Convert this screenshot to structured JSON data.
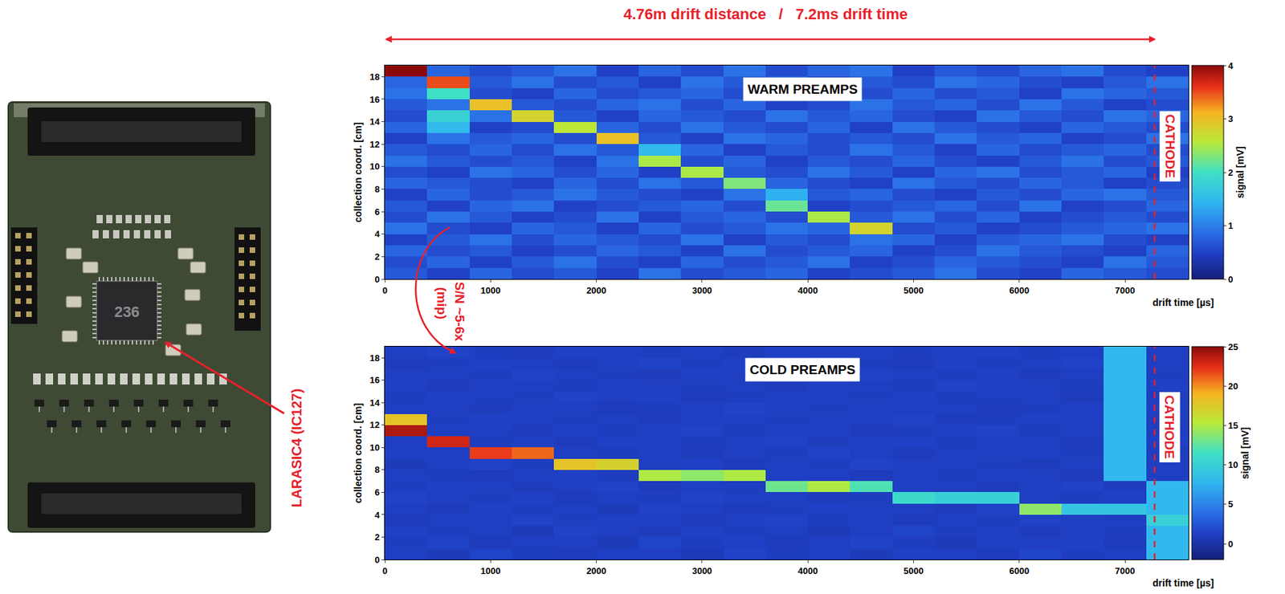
{
  "header": "4.76m drift distance   /   7.2ms drift time",
  "photo": {
    "chip_marking": "236",
    "label": "LARASIC4 (IC127)"
  },
  "comparison_label": [
    "S/N ~5-6x",
    "(mip)"
  ],
  "chart_data": [
    {
      "type": "heatmap",
      "title": "WARM PREAMPS",
      "xlabel": "drift time [µs]",
      "ylabel": "collection coord. [cm]",
      "x": [
        200,
        600,
        1000,
        1400,
        1800,
        2200,
        2600,
        3000,
        3400,
        3800,
        4200,
        4600,
        5000,
        5400,
        5800,
        6200,
        6600,
        7000,
        7400
      ],
      "y": [
        0.5,
        1.5,
        2.5,
        3.5,
        4.5,
        5.5,
        6.5,
        7.5,
        8.5,
        9.5,
        10.5,
        11.5,
        12.5,
        13.5,
        14.5,
        15.5,
        16.5,
        17.5,
        18.5
      ],
      "z": [
        [
          0.7,
          0.5,
          0.8,
          0.6,
          0.7,
          0.5,
          0.9,
          0.6,
          0.7,
          0.8,
          0.5,
          0.6,
          0.7,
          0.9,
          0.6,
          0.5,
          0.8,
          0.7,
          0.6
        ],
        [
          0.6,
          0.8,
          0.5,
          0.7,
          0.9,
          0.6,
          0.5,
          0.8,
          0.6,
          0.7,
          0.9,
          0.5,
          0.6,
          0.8,
          0.7,
          0.6,
          0.5,
          0.9,
          0.7
        ],
        [
          0.8,
          0.6,
          0.7,
          0.5,
          0.6,
          0.8,
          0.7,
          0.5,
          0.9,
          0.6,
          0.7,
          0.8,
          0.5,
          0.6,
          0.9,
          0.7,
          0.6,
          0.5,
          0.8
        ],
        [
          0.5,
          0.7,
          0.9,
          0.6,
          0.8,
          0.7,
          0.6,
          0.9,
          0.5,
          0.7,
          0.6,
          0.9,
          0.8,
          0.5,
          0.7,
          0.8,
          0.9,
          0.6,
          0.5
        ],
        [
          0.9,
          0.6,
          0.5,
          0.8,
          0.7,
          0.5,
          0.8,
          0.6,
          0.7,
          0.9,
          0.8,
          2.8,
          0.6,
          0.7,
          0.5,
          0.6,
          0.7,
          0.8,
          0.9
        ],
        [
          0.6,
          0.9,
          0.7,
          0.5,
          0.6,
          0.9,
          0.5,
          0.7,
          0.8,
          0.6,
          2.5,
          0.7,
          0.9,
          0.6,
          0.8,
          0.5,
          0.6,
          0.7,
          0.6
        ],
        [
          0.7,
          0.5,
          0.8,
          0.9,
          0.5,
          0.6,
          0.7,
          0.8,
          0.6,
          2.2,
          0.5,
          0.6,
          0.7,
          0.8,
          0.6,
          0.9,
          0.5,
          0.6,
          0.8
        ],
        [
          0.5,
          0.8,
          0.6,
          0.7,
          0.9,
          0.7,
          0.6,
          0.5,
          0.9,
          1.4,
          0.7,
          0.8,
          0.6,
          0.5,
          0.7,
          0.6,
          0.8,
          0.9,
          0.7
        ],
        [
          0.8,
          0.7,
          0.6,
          0.5,
          0.8,
          0.6,
          0.9,
          0.7,
          2.3,
          0.8,
          0.6,
          0.5,
          0.9,
          0.7,
          0.6,
          0.8,
          0.7,
          0.5,
          0.6
        ],
        [
          0.6,
          0.5,
          0.9,
          0.8,
          0.6,
          0.8,
          0.5,
          2.5,
          0.7,
          0.6,
          0.9,
          0.7,
          0.5,
          0.8,
          0.9,
          0.6,
          0.7,
          0.8,
          0.5
        ],
        [
          0.9,
          0.7,
          0.6,
          0.7,
          0.5,
          0.9,
          2.5,
          0.6,
          0.8,
          0.5,
          0.7,
          0.6,
          0.8,
          0.6,
          0.5,
          0.7,
          0.9,
          0.6,
          0.7
        ],
        [
          0.7,
          0.6,
          0.8,
          0.6,
          0.9,
          0.7,
          1.5,
          0.8,
          0.5,
          0.7,
          0.6,
          0.9,
          0.7,
          0.5,
          0.8,
          0.6,
          0.7,
          0.8,
          0.6
        ],
        [
          0.5,
          0.9,
          0.7,
          0.8,
          0.6,
          3.0,
          0.7,
          0.5,
          0.9,
          0.8,
          0.6,
          0.7,
          0.6,
          0.9,
          0.7,
          0.8,
          0.5,
          0.6,
          0.9
        ],
        [
          0.8,
          1.5,
          0.5,
          0.6,
          2.6,
          0.8,
          0.6,
          0.9,
          0.7,
          0.6,
          0.8,
          0.5,
          0.9,
          0.7,
          0.6,
          0.5,
          0.8,
          0.7,
          0.6
        ],
        [
          0.6,
          1.8,
          0.9,
          2.8,
          0.7,
          0.5,
          0.8,
          0.7,
          0.6,
          0.9,
          0.7,
          0.8,
          0.6,
          0.5,
          0.9,
          0.7,
          0.6,
          0.9,
          0.8
        ],
        [
          0.7,
          0.9,
          3.0,
          0.7,
          0.6,
          0.8,
          0.9,
          0.6,
          0.8,
          0.5,
          0.6,
          0.9,
          0.7,
          0.8,
          0.6,
          0.9,
          0.7,
          0.5,
          0.6
        ],
        [
          0.9,
          2.0,
          0.6,
          0.5,
          0.8,
          0.6,
          0.7,
          0.8,
          0.6,
          0.7,
          0.9,
          0.6,
          0.8,
          0.6,
          0.7,
          0.5,
          0.9,
          0.8,
          0.7
        ],
        [
          0.8,
          3.5,
          0.7,
          0.9,
          0.6,
          0.7,
          0.5,
          0.9,
          0.7,
          0.8,
          0.5,
          0.7,
          0.6,
          0.9,
          0.8,
          0.6,
          0.5,
          0.7,
          0.9
        ],
        [
          4.0,
          0.8,
          0.6,
          0.7,
          0.9,
          0.5,
          0.8,
          0.6,
          0.9,
          0.6,
          0.8,
          0.9,
          0.5,
          0.7,
          0.6,
          0.8,
          0.9,
          0.6,
          0.5
        ]
      ],
      "xlim": [
        0,
        7600
      ],
      "ylim": [
        0,
        19
      ],
      "xticks": [
        0,
        1000,
        2000,
        3000,
        4000,
        5000,
        6000,
        7000
      ],
      "yticks": [
        0,
        2,
        4,
        6,
        8,
        10,
        12,
        14,
        16,
        18
      ],
      "colorbar": {
        "label": "signal [mV]",
        "range": [
          0,
          4
        ],
        "ticks": [
          0,
          1,
          2,
          3,
          4
        ]
      },
      "cathode": {
        "label": "CATHODE",
        "x": 7280
      }
    },
    {
      "type": "heatmap",
      "title": "COLD PREAMPS",
      "xlabel": "drift time [µs]",
      "ylabel": "collection coord. [cm]",
      "x": [
        200,
        600,
        1000,
        1400,
        1800,
        2200,
        2600,
        3000,
        3400,
        3800,
        4200,
        4600,
        5000,
        5400,
        5800,
        6200,
        6600,
        7000,
        7400
      ],
      "y": [
        0.5,
        1.5,
        2.5,
        3.5,
        4.5,
        5.5,
        6.5,
        7.5,
        8.5,
        9.5,
        10.5,
        11.5,
        12.5,
        13.5,
        14.5,
        15.5,
        16.5,
        17.5,
        18.5
      ],
      "z": [
        [
          1.2,
          0.8,
          1.5,
          1.0,
          0.9,
          1.3,
          1.1,
          0.7,
          1.4,
          1.0,
          1.2,
          0.8,
          1.3,
          1.1,
          0.9,
          1.5,
          1.0,
          1.2,
          8
        ],
        [
          1.0,
          1.4,
          0.9,
          1.2,
          1.1,
          0.8,
          1.5,
          1.0,
          1.3,
          0.9,
          1.1,
          1.4,
          1.0,
          0.8,
          1.2,
          1.1,
          1.3,
          0.9,
          8
        ],
        [
          1.3,
          1.0,
          1.2,
          0.8,
          1.4,
          1.1,
          0.9,
          1.3,
          1.0,
          1.2,
          0.8,
          1.1,
          1.5,
          1.0,
          1.3,
          0.9,
          1.1,
          1.0,
          8
        ],
        [
          0.9,
          1.2,
          1.1,
          1.4,
          1.0,
          1.3,
          1.2,
          0.9,
          1.1,
          1.4,
          1.0,
          1.3,
          0.9,
          1.2,
          1.0,
          1.4,
          1.2,
          1.1,
          10
        ],
        [
          1.1,
          0.9,
          1.3,
          1.0,
          1.2,
          0.8,
          1.4,
          1.1,
          0.9,
          1.0,
          1.3,
          1.2,
          1.1,
          0.9,
          1.4,
          14,
          9,
          9,
          8
        ],
        [
          1.4,
          1.1,
          1.0,
          1.3,
          0.9,
          1.2,
          1.0,
          1.4,
          1.2,
          1.1,
          0.9,
          1.0,
          11,
          10,
          10,
          1.2,
          1.0,
          1.3,
          8
        ],
        [
          1.0,
          1.3,
          1.2,
          0.9,
          1.1,
          1.4,
          0.8,
          1.2,
          1.0,
          13,
          15,
          12,
          1.3,
          1.1,
          0.9,
          1.2,
          1.4,
          1.0,
          8
        ],
        [
          1.2,
          1.0,
          0.9,
          1.1,
          1.3,
          1.0,
          15,
          14,
          15,
          1.3,
          1.1,
          0.9,
          1.2,
          1.0,
          1.3,
          1.1,
          0.9,
          8,
          1.2
        ],
        [
          0.8,
          1.2,
          1.4,
          1.0,
          18,
          17,
          1.1,
          1.3,
          0.9,
          1.2,
          1.0,
          1.4,
          1.1,
          1.3,
          1.0,
          0.9,
          1.2,
          8,
          1.1
        ],
        [
          1.3,
          1.1,
          22,
          21,
          1.2,
          1.0,
          1.3,
          0.9,
          1.1,
          1.0,
          1.4,
          1.2,
          0.9,
          1.1,
          1.2,
          1.3,
          1.0,
          8,
          1.0
        ],
        [
          1.1,
          23,
          1.0,
          1.2,
          0.9,
          1.3,
          1.1,
          1.0,
          1.2,
          1.4,
          0.9,
          1.1,
          1.3,
          1.0,
          1.1,
          1.2,
          0.9,
          8,
          1.3
        ],
        [
          24,
          1.2,
          1.1,
          0.9,
          1.3,
          1.0,
          1.2,
          1.4,
          1.0,
          1.1,
          1.3,
          0.9,
          1.0,
          1.2,
          1.4,
          1.0,
          1.1,
          8,
          1.0
        ],
        [
          18,
          1.0,
          1.3,
          1.1,
          1.0,
          1.2,
          0.9,
          1.1,
          1.3,
          1.0,
          1.2,
          1.1,
          1.4,
          0.9,
          1.0,
          1.3,
          1.2,
          8,
          1.1
        ],
        [
          1.2,
          1.1,
          0.9,
          1.3,
          1.1,
          0.9,
          1.0,
          1.2,
          1.4,
          1.1,
          1.0,
          1.3,
          1.1,
          1.2,
          0.9,
          1.0,
          1.3,
          8,
          1.2
        ],
        [
          1.0,
          1.3,
          1.2,
          1.0,
          1.4,
          1.1,
          1.3,
          0.9,
          1.0,
          1.2,
          1.1,
          1.0,
          1.3,
          1.0,
          1.2,
          1.1,
          0.9,
          8,
          1.0
        ],
        [
          1.3,
          0.9,
          1.1,
          1.2,
          1.0,
          1.3,
          1.1,
          1.0,
          1.2,
          0.9,
          1.3,
          1.1,
          1.0,
          1.4,
          1.1,
          1.2,
          1.0,
          8,
          1.3
        ],
        [
          1.1,
          1.2,
          1.0,
          1.4,
          1.2,
          1.0,
          0.9,
          1.3,
          1.1,
          1.2,
          1.0,
          1.4,
          1.2,
          1.0,
          1.3,
          0.9,
          1.1,
          8,
          1.0
        ],
        [
          0.9,
          1.0,
          1.3,
          1.1,
          0.9,
          1.2,
          1.4,
          1.0,
          1.3,
          1.1,
          1.2,
          1.0,
          0.9,
          1.3,
          1.0,
          1.2,
          1.4,
          8,
          1.1
        ],
        [
          1.2,
          1.4,
          1.0,
          0.9,
          1.3,
          1.1,
          1.0,
          1.2,
          0.9,
          1.3,
          1.1,
          1.2,
          1.0,
          1.1,
          1.3,
          1.0,
          1.2,
          8,
          1.2
        ]
      ],
      "xlim": [
        0,
        7600
      ],
      "ylim": [
        0,
        19
      ],
      "xticks": [
        0,
        1000,
        2000,
        3000,
        4000,
        5000,
        6000,
        7000
      ],
      "yticks": [
        0,
        2,
        4,
        6,
        8,
        10,
        12,
        14,
        16,
        18
      ],
      "colorbar": {
        "label": "signal [mV]",
        "range": [
          -2,
          25
        ],
        "ticks": [
          0,
          5,
          10,
          15,
          20,
          25
        ]
      },
      "cathode": {
        "label": "CATHODE",
        "x": 7280
      }
    }
  ]
}
